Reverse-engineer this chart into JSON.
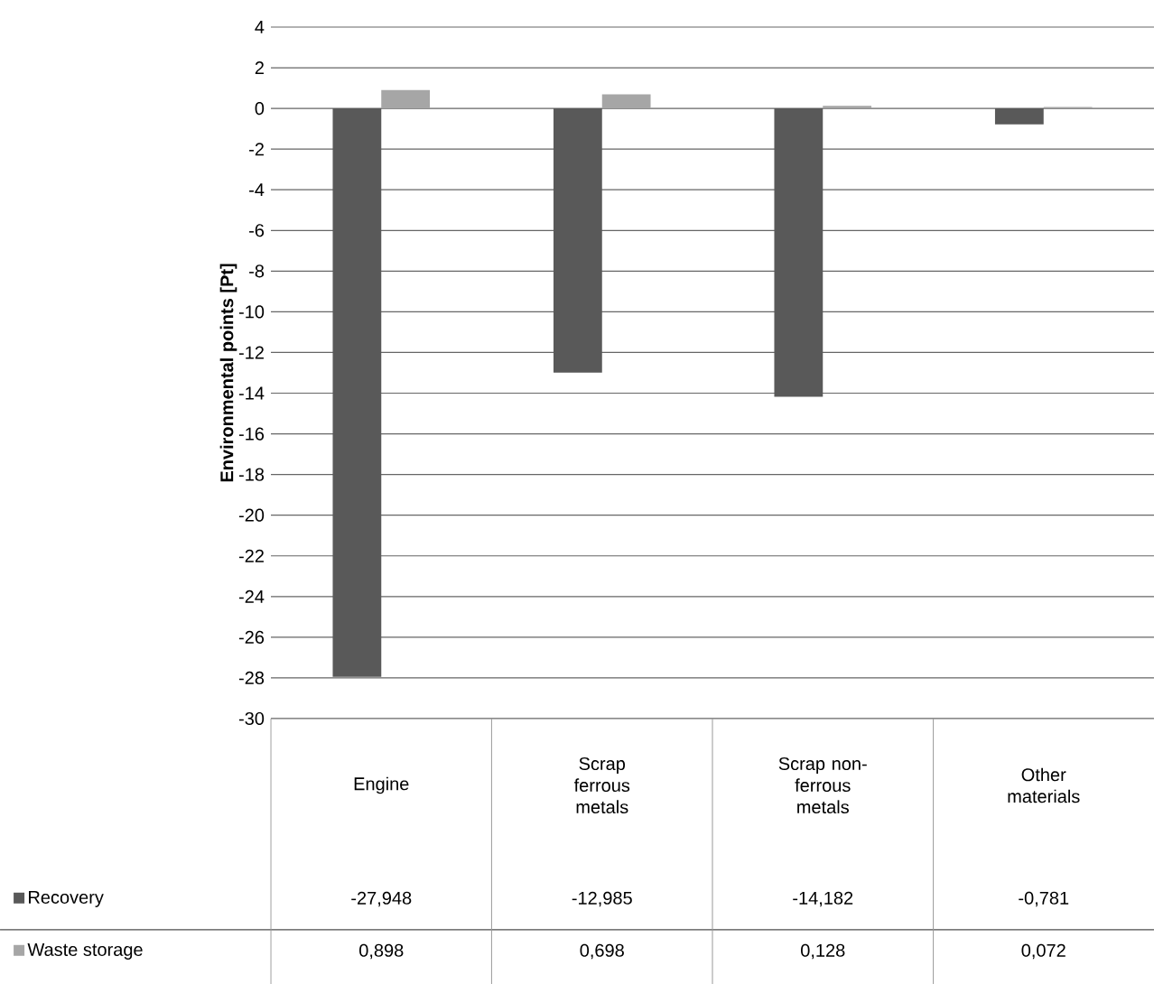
{
  "chart_data": {
    "type": "bar",
    "ylabel": "Environmental points [Pt]",
    "categories": [
      "Engine",
      "Scrap ferrous metals",
      "Scrap non-ferrous metals",
      "Other materials"
    ],
    "series": [
      {
        "name": "Recovery",
        "color": "#595959",
        "values": [
          -27.948,
          -12.985,
          -14.182,
          -0.781
        ],
        "value_labels": [
          "-27,948",
          "-12,985",
          "-14,182",
          "-0,781"
        ]
      },
      {
        "name": "Waste storage",
        "color": "#a6a6a6",
        "values": [
          0.898,
          0.698,
          0.128,
          0.072
        ],
        "value_labels": [
          "0,898",
          "0,698",
          "0,128",
          "0,072"
        ]
      }
    ],
    "ylim": [
      -30,
      4
    ],
    "yticks": [
      -30,
      -28,
      -26,
      -24,
      -22,
      -20,
      -18,
      -16,
      -14,
      -12,
      -10,
      -8,
      -6,
      -4,
      -2,
      0,
      2,
      4
    ],
    "grid": "y",
    "legend": "bottom left"
  }
}
